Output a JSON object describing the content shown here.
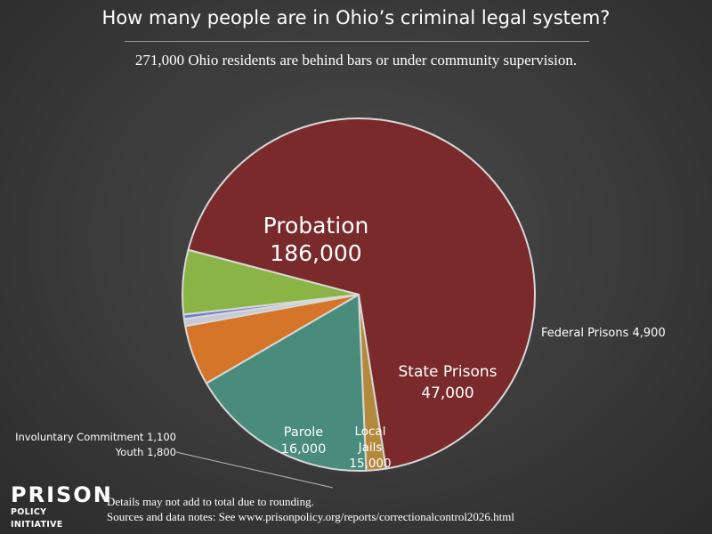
{
  "title": "How many people are in Ohio’s criminal legal system?",
  "subtitle": "271,000 Ohio residents are behind bars or under community supervision.",
  "chart_data": {
    "type": "pie",
    "title": "How many people are in Ohio’s criminal legal system?",
    "subtitle": "271,000 Ohio residents are behind bars or under community supervision.",
    "slices": [
      {
        "label": "Probation",
        "value": 186000,
        "value_text": "186,000",
        "color": "#7a2a2b",
        "label_position": "inside"
      },
      {
        "label": "Federal Prisons",
        "value": 4900,
        "value_text": "4,900",
        "color": "#b38a3c",
        "label_position": "outside-right"
      },
      {
        "label": "State Prisons",
        "value": 47000,
        "value_text": "47,000",
        "color": "#4a8c7c",
        "label_position": "inside"
      },
      {
        "label": "Local Jails",
        "value": 15000,
        "value_text": "15,000",
        "color": "#d4752a",
        "label_position": "inside",
        "label_lines": [
          "Local",
          "Jails"
        ]
      },
      {
        "label": "Youth",
        "value": 1800,
        "value_text": "1,800",
        "color": "#c9c9d6",
        "label_position": "outside-left"
      },
      {
        "label": "Involuntary Commitment",
        "value": 1100,
        "value_text": "1,100",
        "color": "#6f7fd6",
        "label_position": "outside-left"
      },
      {
        "label": "Parole",
        "value": 16000,
        "value_text": "16,000",
        "color": "#8ab446",
        "label_position": "inside"
      }
    ],
    "slice_border_color": "#d8d8d8"
  },
  "footer": {
    "logo_word": "PRISON",
    "logo_sub": "POLICY INITIATIVE",
    "note_1": "Details may not add to total due to rounding.",
    "note_2": "Sources and data notes: See www.prisonpolicy.org/reports/correctionalcontrol2026.html"
  }
}
